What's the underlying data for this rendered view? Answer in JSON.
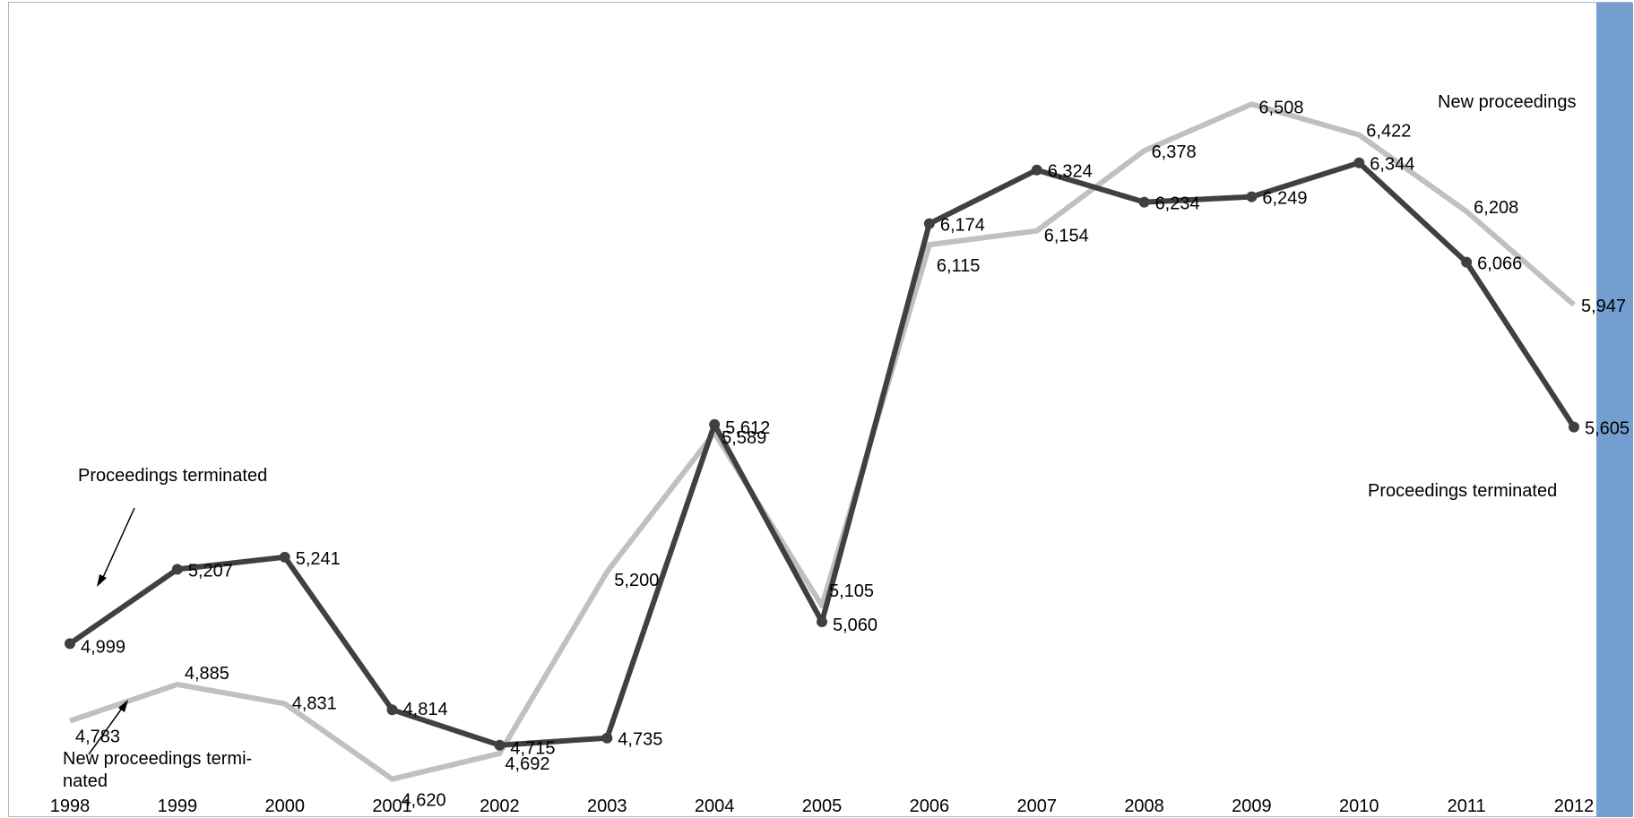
{
  "chart_data": {
    "type": "line",
    "title": "",
    "xlabel": "",
    "ylabel": "",
    "categories": [
      "1998",
      "1999",
      "2000",
      "2001",
      "2002",
      "2003",
      "2004",
      "2005",
      "2006",
      "2007",
      "2008",
      "2009",
      "2010",
      "2011",
      "2012"
    ],
    "series": [
      {
        "name": "New proceedings",
        "color": "#c0c0c0",
        "markers": false,
        "values": [
          4783,
          4885,
          4831,
          4620,
          4692,
          5200,
          5589,
          5105,
          6115,
          6154,
          6378,
          6508,
          6422,
          6208,
          5947
        ],
        "labels": [
          "4,783",
          "4,885",
          "4,831",
          "4,620",
          "4,692",
          "5,200",
          "5,589",
          "5,105",
          "6,115",
          "6,154",
          "6,378",
          "6,508",
          "6,422",
          "6,208",
          "5,947"
        ]
      },
      {
        "name": "Proceedings terminated",
        "color": "#404040",
        "markers": true,
        "values": [
          4999,
          5207,
          5241,
          4814,
          4715,
          4735,
          5612,
          5060,
          6174,
          6324,
          6234,
          6249,
          6344,
          6066,
          5605
        ],
        "labels": [
          "4,999",
          "5,207",
          "5,241",
          "4,814",
          "4,715",
          "4,735",
          "5,612",
          "5,060",
          "6,174",
          "6,324",
          "6,234",
          "6,249",
          "6,344",
          "6,066",
          "5,605"
        ]
      }
    ],
    "ylim": [
      4500,
      6750
    ],
    "grid": false,
    "legend": "none",
    "annotations": {
      "new_right": "New proceedings",
      "terminated_right": "Proceedings terminated",
      "terminated_left": "Proceedings terminated",
      "new_left_line1": "New proceedings termi-",
      "new_left_line2": "nated"
    }
  },
  "colors": {
    "frame_border": "#a6b8cc",
    "right_bar": "#729fcf"
  }
}
